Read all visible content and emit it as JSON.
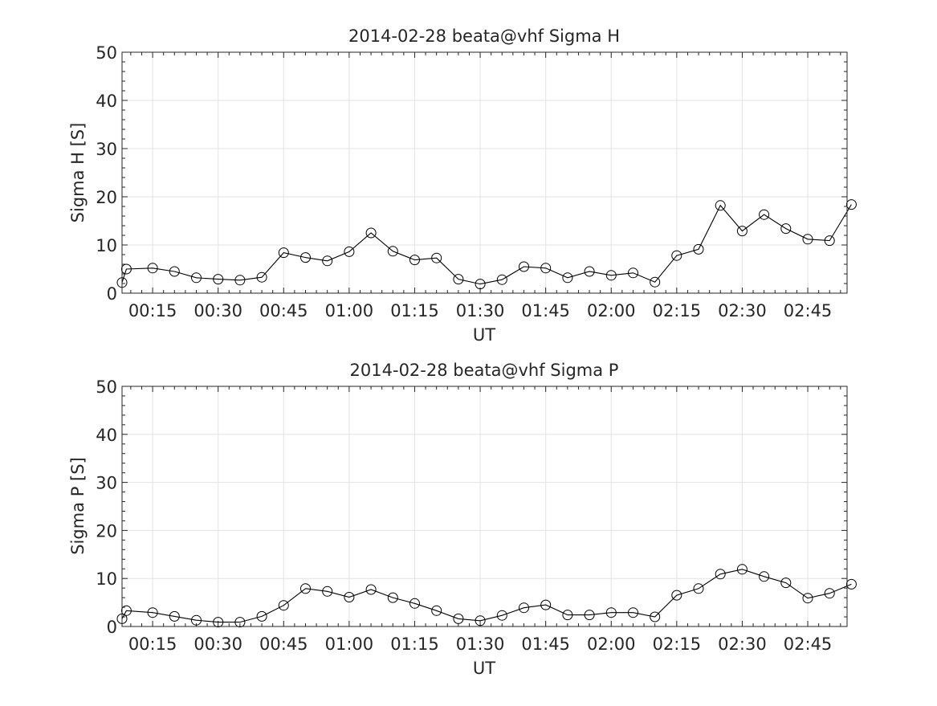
{
  "chart_data": [
    {
      "type": "line",
      "title": "2014-02-28  beata@vhf Sigma H",
      "xlabel": "UT",
      "ylabel": "Sigma H [S]",
      "ylim": [
        0,
        50
      ],
      "yticks": [
        "0",
        "10",
        "20",
        "30",
        "40",
        "50"
      ],
      "xlim": [
        "00:08",
        "02:54"
      ],
      "xticks": [
        "00:15",
        "00:30",
        "00:45",
        "01:00",
        "01:15",
        "01:30",
        "01:45",
        "02:00",
        "02:15",
        "02:30",
        "02:45"
      ],
      "grid": true,
      "marker": "open-circle",
      "line_color": "#000000",
      "series": [
        {
          "x": [
            "00:08",
            "00:09",
            "00:15",
            "00:20",
            "00:25",
            "00:30",
            "00:35",
            "00:40",
            "00:45",
            "00:50",
            "00:55",
            "01:00",
            "01:05",
            "01:10",
            "01:15",
            "01:20",
            "01:25",
            "01:30",
            "01:35",
            "01:40",
            "01:45",
            "01:50",
            "01:55",
            "02:00",
            "02:05",
            "02:10",
            "02:15",
            "02:20",
            "02:25",
            "02:30",
            "02:35",
            "02:40",
            "02:45",
            "02:50",
            "02:55"
          ],
          "values": [
            2.2,
            5.0,
            5.2,
            4.5,
            3.2,
            2.9,
            2.7,
            3.3,
            8.4,
            7.4,
            6.7,
            8.6,
            12.5,
            8.7,
            6.9,
            7.3,
            2.9,
            1.9,
            2.8,
            5.5,
            5.2,
            3.2,
            4.5,
            3.7,
            4.2,
            2.3,
            7.8,
            9.1,
            18.2,
            12.9,
            16.3,
            13.4,
            11.2,
            10.9,
            18.4
          ]
        }
      ]
    },
    {
      "type": "line",
      "title": "2014-02-28  beata@vhf Sigma P",
      "xlabel": "UT",
      "ylabel": "Sigma P [S]",
      "ylim": [
        0,
        50
      ],
      "yticks": [
        "0",
        "10",
        "20",
        "30",
        "40",
        "50"
      ],
      "xlim": [
        "00:08",
        "02:54"
      ],
      "xticks": [
        "00:15",
        "00:30",
        "00:45",
        "01:00",
        "01:15",
        "01:30",
        "01:45",
        "02:00",
        "02:15",
        "02:30",
        "02:45"
      ],
      "grid": true,
      "marker": "open-circle",
      "line_color": "#000000",
      "series": [
        {
          "x": [
            "00:08",
            "00:09",
            "00:15",
            "00:20",
            "00:25",
            "00:30",
            "00:35",
            "00:40",
            "00:45",
            "00:50",
            "00:55",
            "01:00",
            "01:05",
            "01:10",
            "01:15",
            "01:20",
            "01:25",
            "01:30",
            "01:35",
            "01:40",
            "01:45",
            "01:50",
            "01:55",
            "02:00",
            "02:05",
            "02:10",
            "02:15",
            "02:20",
            "02:25",
            "02:30",
            "02:35",
            "02:40",
            "02:45",
            "02:50",
            "02:55"
          ],
          "values": [
            1.6,
            3.3,
            2.9,
            2.1,
            1.3,
            0.9,
            0.9,
            2.1,
            4.4,
            7.9,
            7.3,
            6.1,
            7.7,
            6.0,
            4.8,
            3.3,
            1.6,
            1.2,
            2.3,
            3.9,
            4.5,
            2.4,
            2.4,
            2.9,
            2.9,
            2.0,
            6.5,
            7.9,
            10.9,
            11.9,
            10.4,
            9.1,
            5.9,
            6.9,
            8.8
          ]
        }
      ]
    }
  ]
}
